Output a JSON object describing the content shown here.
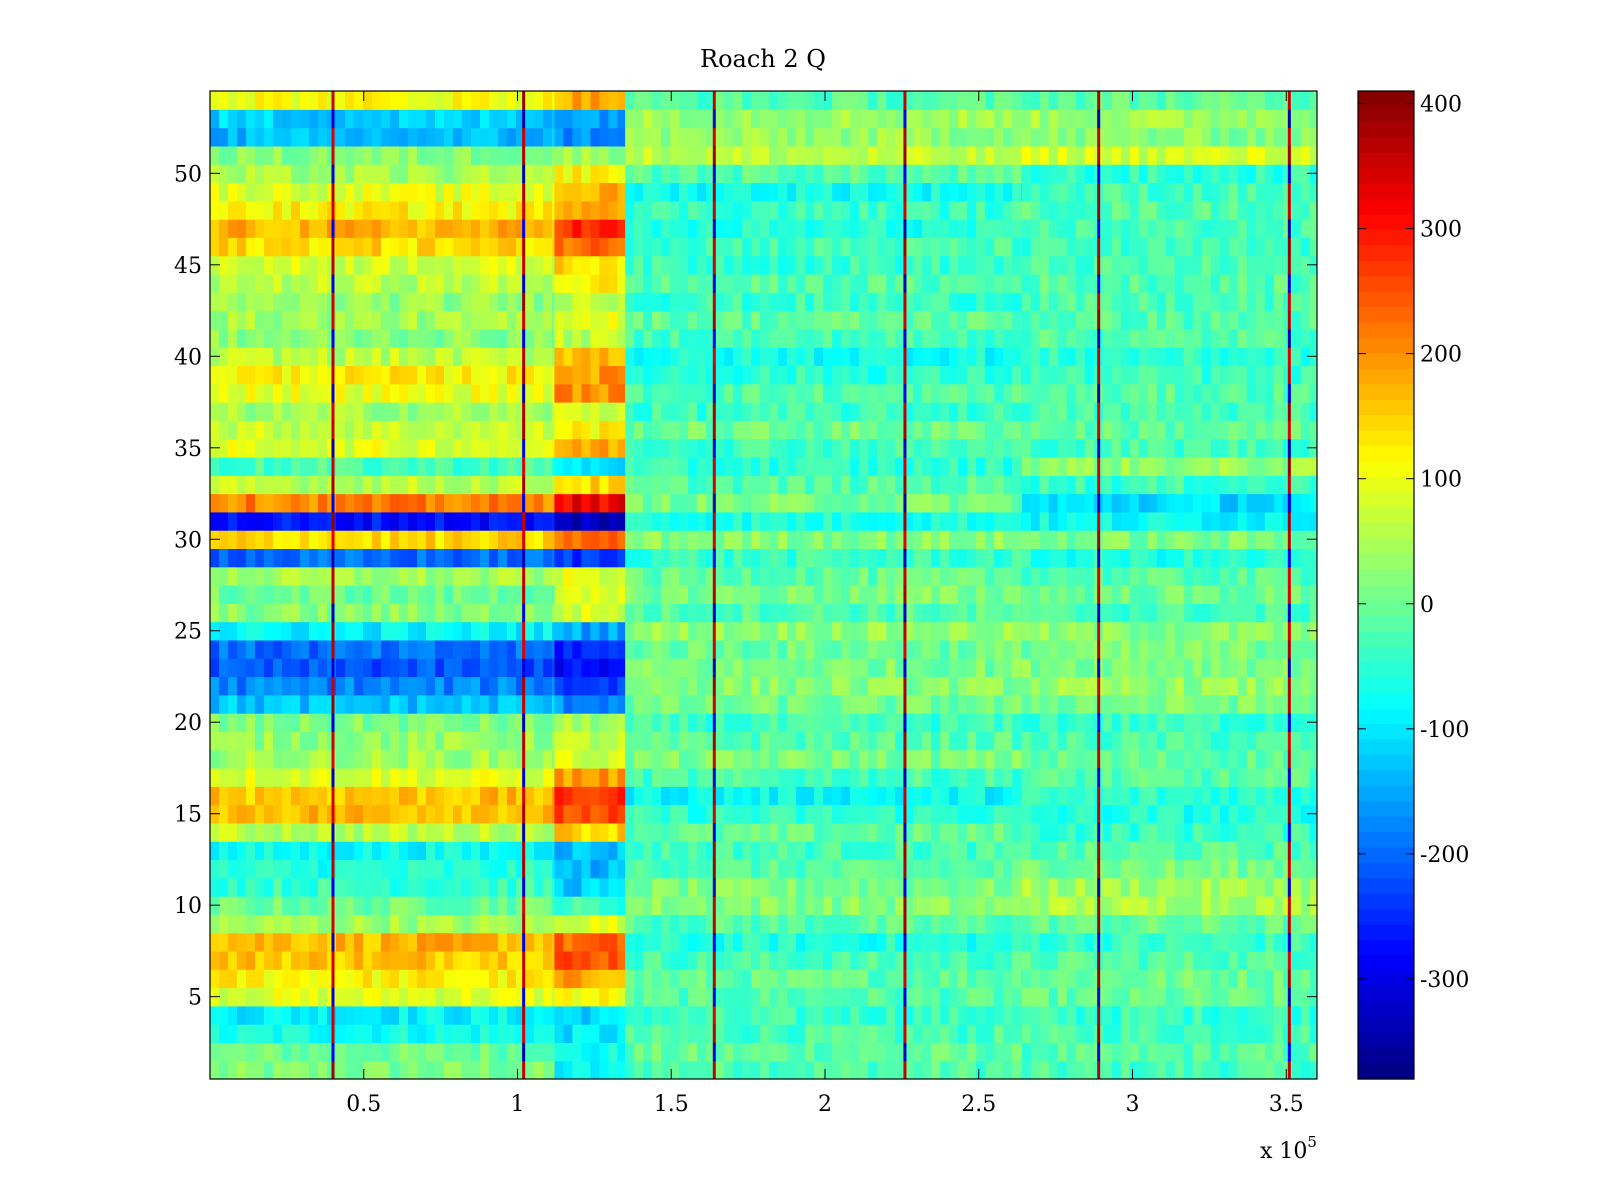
{
  "chart_data": {
    "type": "heatmap",
    "title": "Roach 2 Q",
    "xlabel": "",
    "ylabel": "",
    "x_multiplier_label": "x 10",
    "x_multiplier_exponent": "5",
    "xlim": [
      0,
      360000
    ],
    "ylim": [
      0.5,
      54.5
    ],
    "x_ticks": [
      0.5,
      1,
      1.5,
      2,
      2.5,
      3,
      3.5
    ],
    "x_tick_labels": [
      "0.5",
      "1",
      "1.5",
      "2",
      "2.5",
      "3",
      "3.5"
    ],
    "y_ticks": [
      5,
      10,
      15,
      20,
      25,
      30,
      35,
      40,
      45,
      50
    ],
    "y_tick_labels": [
      "5",
      "10",
      "15",
      "20",
      "25",
      "30",
      "35",
      "40",
      "45",
      "50"
    ],
    "colorbar": {
      "colormap": "jet",
      "range": [
        -380,
        410
      ],
      "ticks": [
        -300,
        -200,
        -100,
        0,
        100,
        200,
        300,
        400
      ],
      "tick_labels": [
        "-300",
        "-200",
        "-100",
        "0",
        "100",
        "200",
        "300",
        "400"
      ]
    },
    "column_blocks": [
      {
        "x_start": 0,
        "x_end": 112000
      },
      {
        "x_start": 112000,
        "x_end": 135000
      },
      {
        "x_start": 135000,
        "x_end": 264000
      },
      {
        "x_start": 264000,
        "x_end": 360000
      }
    ],
    "rows_1_to_54_block_means": [
      [
        10,
        -90,
        -20,
        -30
      ],
      [
        0,
        -80,
        -10,
        -20
      ],
      [
        -70,
        -100,
        -30,
        -30
      ],
      [
        -90,
        -110,
        -40,
        -40
      ],
      [
        90,
        110,
        -20,
        -10
      ],
      [
        120,
        180,
        -10,
        0
      ],
      [
        160,
        250,
        -30,
        -20
      ],
      [
        170,
        230,
        -60,
        -40
      ],
      [
        40,
        90,
        -20,
        -10
      ],
      [
        0,
        -40,
        20,
        50
      ],
      [
        -40,
        -120,
        10,
        40
      ],
      [
        -60,
        -140,
        -20,
        10
      ],
      [
        -80,
        -130,
        -30,
        -20
      ],
      [
        60,
        150,
        -10,
        -40
      ],
      [
        170,
        250,
        -50,
        -60
      ],
      [
        160,
        270,
        -80,
        -50
      ],
      [
        90,
        190,
        -30,
        -20
      ],
      [
        40,
        80,
        10,
        -10
      ],
      [
        30,
        60,
        -20,
        -30
      ],
      [
        10,
        40,
        -40,
        -40
      ],
      [
        -130,
        -170,
        0,
        10
      ],
      [
        -180,
        -230,
        20,
        30
      ],
      [
        -220,
        -280,
        10,
        20
      ],
      [
        -200,
        -250,
        0,
        10
      ],
      [
        -90,
        -150,
        30,
        20
      ],
      [
        20,
        80,
        -20,
        -30
      ],
      [
        0,
        70,
        10,
        0
      ],
      [
        40,
        90,
        -10,
        -20
      ],
      [
        -200,
        -240,
        -40,
        -60
      ],
      [
        140,
        230,
        20,
        10
      ],
      [
        -270,
        -330,
        -60,
        -80
      ],
      [
        210,
        320,
        10,
        -110
      ],
      [
        60,
        140,
        -20,
        -40
      ],
      [
        -30,
        -100,
        -50,
        30
      ],
      [
        90,
        180,
        -30,
        -30
      ],
      [
        70,
        120,
        0,
        -10
      ],
      [
        40,
        80,
        -40,
        -30
      ],
      [
        100,
        200,
        -20,
        -20
      ],
      [
        120,
        190,
        -50,
        -40
      ],
      [
        60,
        170,
        -70,
        -50
      ],
      [
        20,
        60,
        -30,
        -20
      ],
      [
        40,
        100,
        -10,
        -20
      ],
      [
        30,
        70,
        -40,
        -30
      ],
      [
        60,
        120,
        -20,
        -20
      ],
      [
        80,
        140,
        -40,
        -30
      ],
      [
        140,
        230,
        -30,
        -40
      ],
      [
        170,
        280,
        -60,
        -30
      ],
      [
        120,
        200,
        -40,
        -20
      ],
      [
        90,
        170,
        -70,
        -30
      ],
      [
        40,
        120,
        -20,
        -50
      ],
      [
        20,
        40,
        60,
        80
      ],
      [
        -140,
        -170,
        30,
        20
      ],
      [
        -120,
        -150,
        40,
        40
      ],
      [
        110,
        180,
        -20,
        -10
      ]
    ],
    "vertical_artifact_lines_x": [
      40000,
      102000,
      164000,
      226000,
      289000,
      351000
    ]
  }
}
